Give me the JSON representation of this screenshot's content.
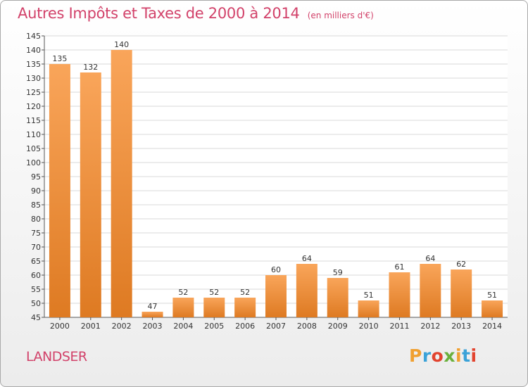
{
  "chart_data": {
    "type": "bar",
    "title": "Autres Impôts et Taxes de 2000 à 2014",
    "subtitle": "(en milliers d'€)",
    "categories": [
      "2000",
      "2001",
      "2002",
      "2003",
      "2004",
      "2005",
      "2006",
      "2007",
      "2008",
      "2009",
      "2010",
      "2011",
      "2012",
      "2013",
      "2014"
    ],
    "values": [
      135,
      132,
      140,
      47,
      52,
      52,
      52,
      60,
      64,
      59,
      51,
      61,
      64,
      62,
      51
    ],
    "ylim": [
      45,
      145
    ],
    "ytick_step": 5,
    "grid": true,
    "bar_color_top": "#f9a55a",
    "bar_color_bottom": "#de7a22"
  },
  "footer": {
    "commune": "LANDSER",
    "logo_text": "Proxiti"
  },
  "colors": {
    "title": "#d2426a",
    "logo": [
      "#f0a030",
      "#3aa2d8",
      "#e2432e",
      "#6ab03c",
      "#f0a030",
      "#3aa2d8",
      "#e2432e"
    ]
  }
}
